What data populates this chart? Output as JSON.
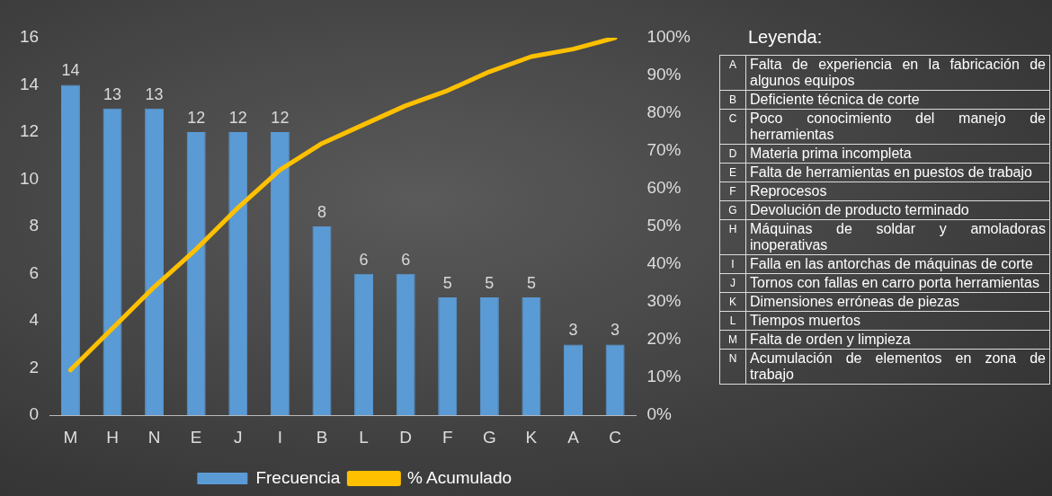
{
  "chart_data": [
    {
      "type": "bar",
      "categories": [
        "M",
        "H",
        "N",
        "E",
        "J",
        "I",
        "B",
        "L",
        "D",
        "F",
        "G",
        "K",
        "A",
        "C"
      ],
      "series": [
        {
          "name": "Frecuencia",
          "type": "bar",
          "color": "#5b9bd5",
          "values": [
            14,
            13,
            13,
            12,
            12,
            12,
            8,
            6,
            6,
            5,
            5,
            5,
            3,
            3
          ],
          "value_labels": [
            "14",
            "13",
            "13",
            "12",
            "12",
            "12",
            "8",
            "6",
            "6",
            "5",
            "5",
            "5",
            "3",
            "3"
          ]
        },
        {
          "name": "% Acumulado",
          "type": "line",
          "axis": "y2",
          "color": "#ffc000",
          "values": [
            12,
            23,
            34,
            44,
            55,
            65,
            72,
            77,
            82,
            86,
            91,
            95,
            97,
            100
          ]
        }
      ],
      "ylim": [
        0,
        16
      ],
      "yticks": [
        0,
        2,
        4,
        6,
        8,
        10,
        12,
        14,
        16
      ],
      "y2lim": [
        0,
        100
      ],
      "y2ticks": [
        {
          "value": 0,
          "label": "0%"
        },
        {
          "value": 10,
          "label": "10%"
        },
        {
          "value": 20,
          "label": "20%"
        },
        {
          "value": 30,
          "label": "30%"
        },
        {
          "value": 40,
          "label": "40%"
        },
        {
          "value": 50,
          "label": "50%"
        },
        {
          "value": 60,
          "label": "60%"
        },
        {
          "value": 70,
          "label": "70%"
        },
        {
          "value": 80,
          "label": "80%"
        },
        {
          "value": 90,
          "label": "90%"
        },
        {
          "value": 100,
          "label": "100%"
        }
      ],
      "grid": false,
      "legend": "bottom",
      "marker": "none"
    },
    {
      "type": "other",
      "title": "Leyenda:",
      "categories": [
        "A",
        "B",
        "C",
        "D",
        "E",
        "F",
        "G",
        "H",
        "I",
        "J",
        "K",
        "L",
        "M",
        "N"
      ],
      "annotations": [
        "Falta de experiencia en la fabricación de algunos equipos",
        "Deficiente técnica de corte",
        "Poco conocimiento del manejo de herramientas",
        "Materia prima incompleta",
        "Falta de herramientas en puestos de trabajo",
        "Reprocesos",
        "Devolución de producto terminado",
        "Máquinas de soldar y amoladoras inoperativas",
        "Falla en las antorchas de máquinas de corte",
        "Tornos con fallas en carro porta herramientas",
        "Dimensiones erróneas de piezas",
        "Tiempos muertos",
        "Falta de orden y limpieza",
        "Acumulación de elementos en zona de trabajo"
      ]
    }
  ]
}
